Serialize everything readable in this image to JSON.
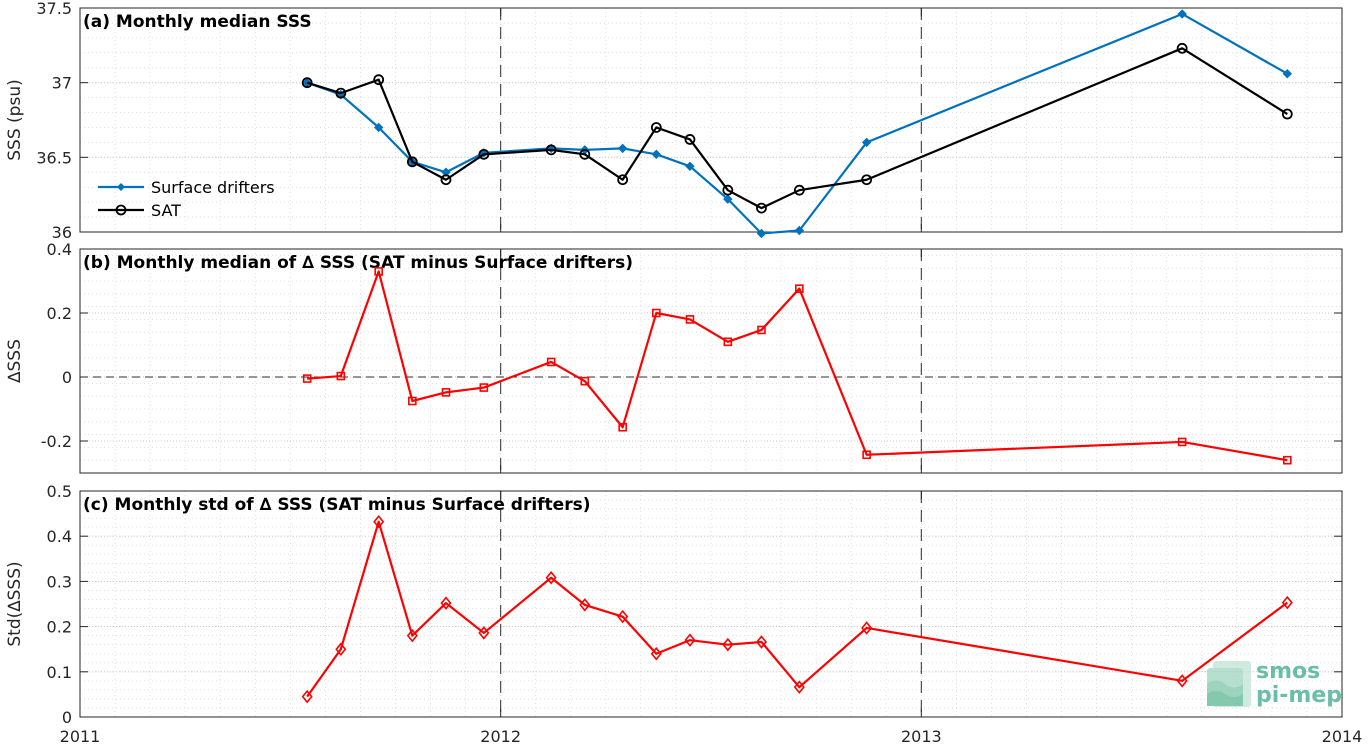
{
  "watermark": {
    "line1": "smos",
    "line2": "pi-mep",
    "color": "#3aa98a"
  },
  "colors": {
    "drifters": "#0072BD",
    "sat": "#000000",
    "delta": "#ff0000",
    "grid": "#d9d9d9",
    "dashed": "#000000"
  },
  "chart_data": [
    {
      "type": "line",
      "title": "(a) Monthly median SSS",
      "ylabel": "SSS (psu)",
      "xlim": [
        2011,
        2014
      ],
      "ylim": [
        36,
        37.5
      ],
      "yticks": [
        36,
        36.5,
        37,
        37.5
      ],
      "ytick_labels": [
        "36",
        "36.5",
        "37",
        "37.5"
      ],
      "grid": true,
      "vlines": [
        2012,
        2013
      ],
      "legend_position": "left",
      "series": [
        {
          "name": "Surface drifters",
          "color": "#0072BD",
          "marker": "diamond-filled",
          "x": [
            2011.54,
            2011.62,
            2011.71,
            2011.79,
            2011.87,
            2011.96,
            2012.12,
            2012.2,
            2012.29,
            2012.37,
            2012.45,
            2012.54,
            2012.62,
            2012.71,
            2012.87,
            2013.62,
            2013.87
          ],
          "y": [
            37.0,
            36.92,
            36.7,
            36.47,
            36.4,
            36.53,
            36.56,
            36.55,
            36.56,
            36.52,
            36.44,
            36.22,
            35.99,
            36.01,
            36.6,
            37.46,
            37.06
          ]
        },
        {
          "name": "SAT",
          "color": "#000000",
          "marker": "circle-open",
          "x": [
            2011.54,
            2011.62,
            2011.71,
            2011.79,
            2011.87,
            2011.96,
            2012.12,
            2012.2,
            2012.29,
            2012.37,
            2012.45,
            2012.54,
            2012.62,
            2012.71,
            2012.87,
            2013.62,
            2013.87
          ],
          "y": [
            37.0,
            36.93,
            37.02,
            36.47,
            36.35,
            36.52,
            36.55,
            36.52,
            36.35,
            36.7,
            36.62,
            36.28,
            36.16,
            36.28,
            36.35,
            37.23,
            36.79
          ]
        }
      ]
    },
    {
      "type": "line",
      "title": "(b) Monthly median of ∆ SSS (SAT minus Surface drifters)",
      "ylabel": "∆SSS",
      "xlim": [
        2011,
        2014
      ],
      "ylim": [
        -0.3,
        0.4
      ],
      "yticks": [
        -0.2,
        0,
        0.2,
        0.4
      ],
      "ytick_labels": [
        "-0.2",
        "0",
        "0.2",
        "0.4"
      ],
      "grid": true,
      "vlines": [
        2012,
        2013
      ],
      "hline": 0,
      "series": [
        {
          "name": "",
          "color": "#ff0000",
          "marker": "square-open",
          "x": [
            2011.54,
            2011.62,
            2011.71,
            2011.79,
            2011.87,
            2011.96,
            2012.12,
            2012.2,
            2012.29,
            2012.37,
            2012.45,
            2012.54,
            2012.62,
            2012.71,
            2012.87,
            2013.62,
            2013.87
          ],
          "y": [
            -0.005,
            0.003,
            0.33,
            -0.075,
            -0.048,
            -0.033,
            0.047,
            -0.013,
            -0.157,
            0.2,
            0.18,
            0.11,
            0.147,
            0.276,
            -0.243,
            -0.203,
            -0.26
          ]
        }
      ]
    },
    {
      "type": "line",
      "title": "(c) Monthly std of ∆ SSS (SAT minus Surface drifters)",
      "ylabel": "Std(∆SSS)",
      "xlim": [
        2011,
        2014
      ],
      "ylim": [
        0,
        0.5
      ],
      "yticks": [
        0,
        0.1,
        0.2,
        0.3,
        0.4,
        0.5
      ],
      "ytick_labels": [
        "0",
        "0.1",
        "0.2",
        "0.3",
        "0.4",
        "0.5"
      ],
      "xticks": [
        2011,
        2012,
        2013,
        2014
      ],
      "xtick_labels": [
        "2011",
        "2012",
        "2013",
        "2014"
      ],
      "grid": true,
      "vlines": [
        2012,
        2013
      ],
      "series": [
        {
          "name": "",
          "color": "#ff0000",
          "marker": "diamond-open",
          "x": [
            2011.54,
            2011.62,
            2011.71,
            2011.79,
            2011.87,
            2011.96,
            2012.12,
            2012.2,
            2012.29,
            2012.37,
            2012.45,
            2012.54,
            2012.62,
            2012.71,
            2012.87,
            2013.62,
            2013.87
          ],
          "y": [
            0.045,
            0.15,
            0.432,
            0.18,
            0.252,
            0.186,
            0.308,
            0.248,
            0.222,
            0.14,
            0.17,
            0.16,
            0.166,
            0.066,
            0.197,
            0.08,
            0.253
          ]
        }
      ]
    }
  ]
}
